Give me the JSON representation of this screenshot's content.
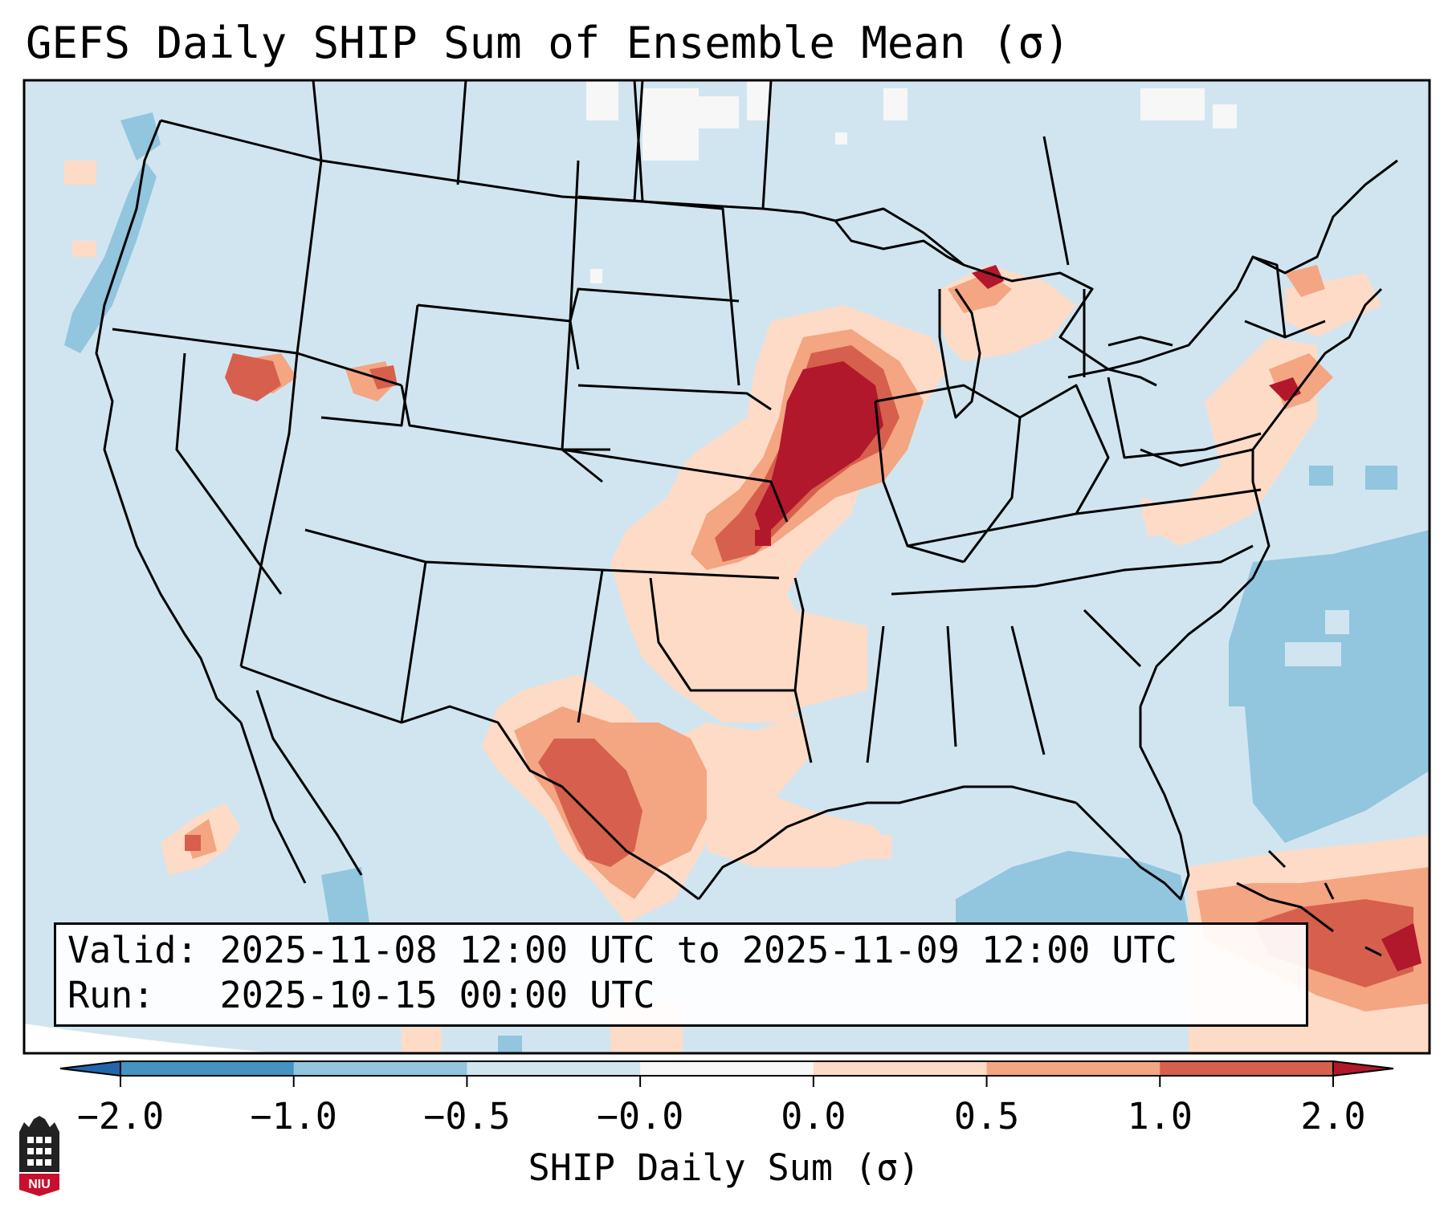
{
  "title": "GEFS Daily SHIP Sum of Ensemble Mean (σ)",
  "info": {
    "valid": "Valid: 2025-11-08 12:00 UTC to 2025-11-09 12:00 UTC",
    "run": "Run:   2025-10-15 00:00 UTC"
  },
  "colorbar": {
    "label": "SHIP Daily Sum (σ)",
    "ticks": [
      "−2.0",
      "−1.0",
      "−0.5",
      "−0.0",
      "0.0",
      "0.5",
      "1.0",
      "2.0"
    ],
    "colors": [
      "#4393c3",
      "#92c5de",
      "#d1e5f0",
      "#f7f7f7",
      "#fddbc7",
      "#f4a582",
      "#d6604d"
    ],
    "under_color": "#2166ac",
    "over_color": "#b2182b"
  },
  "map": {
    "background_color": "#d1e5f0",
    "outside_color": "#ffffff",
    "features": "US state borders, Canada and Mexico coastlines"
  },
  "logo": {
    "text": "NIU",
    "icon": "niu-logo-icon"
  }
}
